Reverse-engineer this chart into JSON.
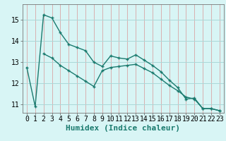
{
  "title": "",
  "xlabel": "Humidex (Indice chaleur)",
  "background_color": "#d8f5f5",
  "grid_color": "#aad8d8",
  "line_color": "#1a7a6e",
  "xlim": [
    -0.5,
    23.5
  ],
  "ylim": [
    10.6,
    15.75
  ],
  "yticks": [
    11,
    12,
    13,
    14,
    15
  ],
  "xticks": [
    0,
    1,
    2,
    3,
    4,
    5,
    6,
    7,
    8,
    9,
    10,
    11,
    12,
    13,
    14,
    15,
    16,
    17,
    18,
    19,
    20,
    21,
    22,
    23
  ],
  "series1_x": [
    0,
    1,
    2,
    3,
    4,
    5,
    6,
    7,
    8,
    9,
    10,
    11,
    12,
    13,
    14,
    15,
    16,
    17,
    18,
    19,
    20,
    21,
    22,
    23
  ],
  "series1_y": [
    12.75,
    10.9,
    15.25,
    15.1,
    14.4,
    13.85,
    13.7,
    13.55,
    13.0,
    12.8,
    13.3,
    13.2,
    13.15,
    13.35,
    13.1,
    12.85,
    12.55,
    12.15,
    11.8,
    11.25,
    11.3,
    10.8,
    10.8,
    10.7
  ],
  "series2_x": [
    2,
    3,
    4,
    5,
    6,
    7,
    8,
    9,
    10,
    11,
    12,
    13,
    14,
    15,
    16,
    17,
    18,
    19,
    20,
    21,
    22,
    23
  ],
  "series2_y": [
    13.4,
    13.2,
    12.85,
    12.6,
    12.35,
    12.1,
    11.85,
    12.6,
    12.75,
    12.8,
    12.85,
    12.9,
    12.7,
    12.5,
    12.2,
    11.9,
    11.65,
    11.35,
    11.25,
    10.8,
    10.8,
    10.7
  ],
  "marker_size": 3.5,
  "line_width": 1.0,
  "tick_fontsize": 7,
  "xlabel_fontsize": 8
}
